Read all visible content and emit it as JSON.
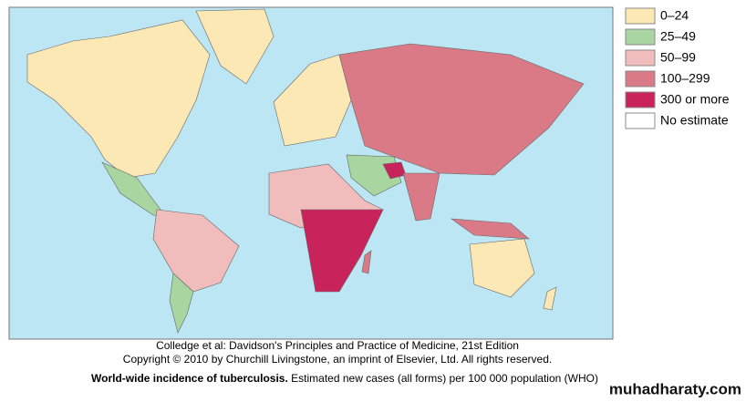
{
  "legend": [
    {
      "label": "0–24",
      "color": "#fbe8b5"
    },
    {
      "label": "25–49",
      "color": "#a8d5a0"
    },
    {
      "label": "50–99",
      "color": "#f0bcbc"
    },
    {
      "label": "100–299",
      "color": "#d97a86"
    },
    {
      "label": "300 or more",
      "color": "#c8235a"
    },
    {
      "label": "No estimate",
      "color": "#ffffff"
    }
  ],
  "credits": [
    "Colledge et al: Davidson's Principles and Practice of Medicine, 21st Edition",
    "Copyright © 2010 by Churchill Livingstone, an imprint of Elsevier, Ltd. All rights reserved."
  ],
  "caption": {
    "title": "World-wide incidence of tuberculosis.",
    "text": "Estimated new cases (all forms) per 100 000 population (WHO)"
  },
  "watermark": "muhadharaty.com"
}
